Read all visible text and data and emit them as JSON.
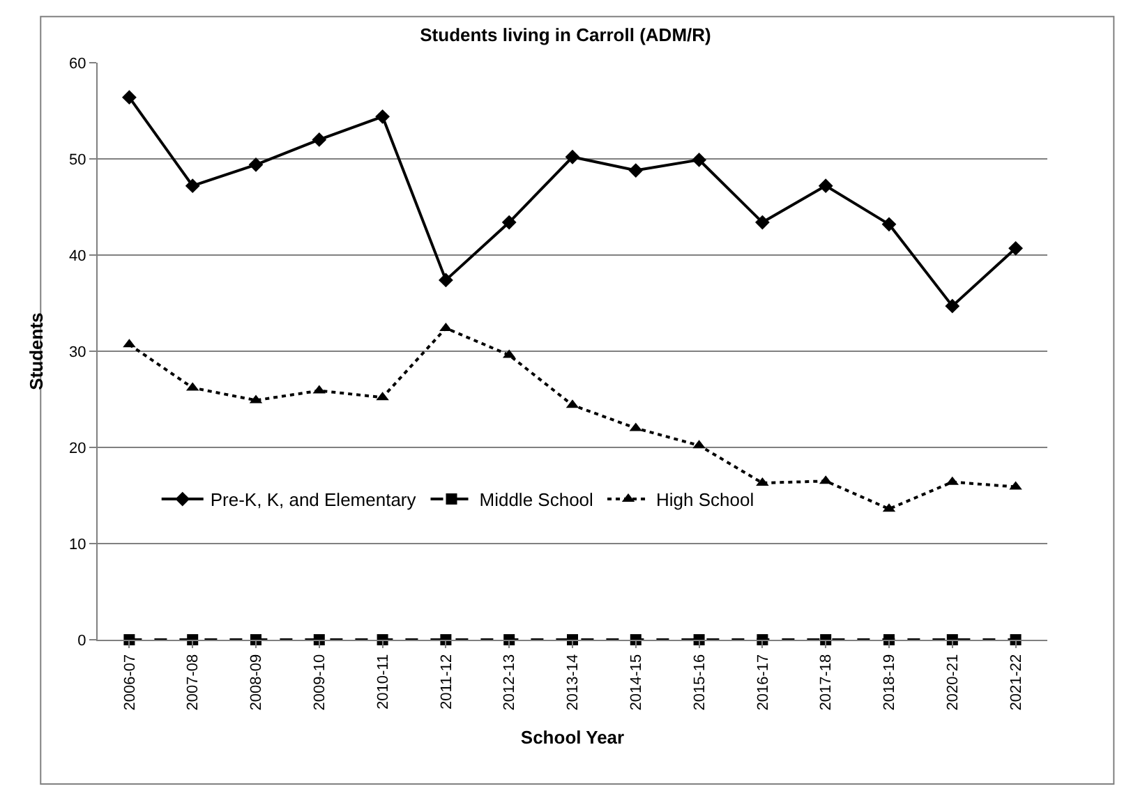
{
  "chart_data": {
    "type": "line",
    "title": "Students living in Carroll (ADM/R)",
    "xlabel": "School Year",
    "ylabel": "Students",
    "categories": [
      "2006-07",
      "2007-08",
      "2008-09",
      "2009-10",
      "2010-11",
      "2011-12",
      "2012-13",
      "2013-14",
      "2014-15",
      "2015-16",
      "2016-17",
      "2017-18",
      "2018-19",
      "2020-21",
      "2021-22"
    ],
    "series": [
      {
        "name": "Pre-K, K, and Elementary",
        "color": "#000000",
        "marker": "diamond",
        "line_style": "solid",
        "values": [
          56.4,
          47.2,
          49.4,
          52.0,
          54.4,
          37.4,
          43.4,
          50.2,
          48.8,
          49.9,
          43.4,
          47.2,
          43.2,
          34.7,
          40.7
        ]
      },
      {
        "name": "Middle School",
        "color": "#000000",
        "marker": "square",
        "line_style": "dashed",
        "values": [
          0,
          0,
          0,
          0,
          0,
          0,
          0,
          0,
          0,
          0,
          0,
          0,
          0,
          0,
          0
        ]
      },
      {
        "name": "High School",
        "color": "#000000",
        "marker": "triangle",
        "line_style": "dotted",
        "values": [
          30.7,
          26.2,
          24.9,
          25.9,
          25.2,
          32.4,
          29.6,
          24.4,
          22.0,
          20.2,
          16.3,
          16.5,
          13.6,
          16.4,
          15.9
        ]
      }
    ],
    "ylim": [
      0,
      60
    ],
    "yticks": [
      0,
      10,
      20,
      30,
      40,
      50,
      60
    ],
    "grid": "y",
    "legend": "bottom left"
  }
}
